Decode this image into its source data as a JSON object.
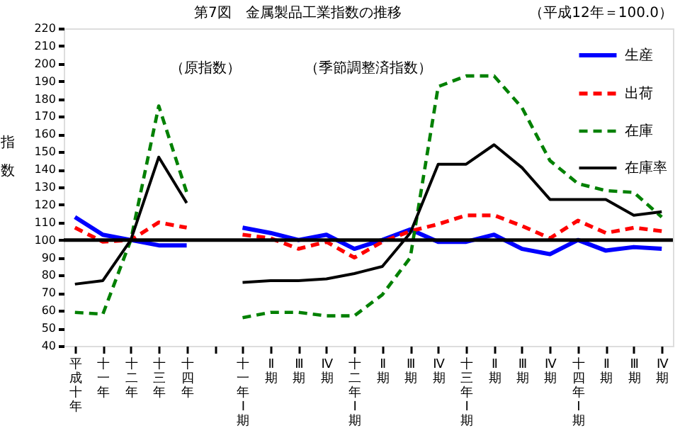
{
  "chart_data": {
    "type": "line",
    "title": "第7図　金属製品工業指数の推移",
    "subtitle": "（平成12年＝100.0）",
    "ylabel": "指数",
    "annotations": [
      "（原指数）",
      "（季節調整済指数）"
    ],
    "categories": [
      "平成十年",
      "十一年",
      "十二年",
      "十三年",
      "十四年",
      null,
      "十一年Ⅰ期",
      "Ⅱ期",
      "Ⅲ期",
      "Ⅳ期",
      "十二年Ⅰ期",
      "Ⅱ期",
      "Ⅲ期",
      "Ⅳ期",
      "十三年Ⅰ期",
      "Ⅱ期",
      "Ⅲ期",
      "Ⅳ期",
      "十四年Ⅰ期",
      "Ⅱ期",
      "Ⅲ期",
      "Ⅳ期"
    ],
    "series": [
      {
        "name": "生産",
        "color": "#0000ff",
        "line_style": "solid",
        "values": [
          113,
          103,
          100,
          97,
          97,
          null,
          107,
          104,
          100,
          103,
          95,
          100,
          106,
          99,
          99,
          103,
          95,
          92,
          100,
          94,
          96,
          95
        ]
      },
      {
        "name": "出荷",
        "color": "#ff0000",
        "line_style": "dashed",
        "values": [
          107,
          99,
          100,
          110,
          107,
          null,
          103,
          101,
          95,
          99,
          90,
          99,
          105,
          109,
          114,
          114,
          108,
          101,
          111,
          104,
          107,
          105
        ]
      },
      {
        "name": "在庫",
        "color": "#008000",
        "line_style": "dashed",
        "values": [
          59,
          58,
          100,
          176,
          127,
          null,
          56,
          59,
          59,
          57,
          57,
          69,
          90,
          187,
          193,
          193,
          175,
          145,
          132,
          128,
          127,
          113
        ]
      },
      {
        "name": "在庫率",
        "color": "#000000",
        "line_style": "solid",
        "values": [
          75,
          77,
          100,
          147,
          121,
          null,
          76,
          77,
          77,
          78,
          81,
          85,
          104,
          143,
          143,
          154,
          141,
          123,
          123,
          123,
          114,
          116
        ]
      }
    ],
    "ylim": [
      40,
      220
    ],
    "yticks": [
      40,
      50,
      60,
      70,
      80,
      90,
      100,
      110,
      120,
      130,
      140,
      150,
      160,
      170,
      180,
      190,
      200,
      210,
      220
    ],
    "ref_lines": [
      {
        "axis": "y",
        "value": 100
      }
    ],
    "grid": false,
    "legend": "top right",
    "marker": "none"
  }
}
